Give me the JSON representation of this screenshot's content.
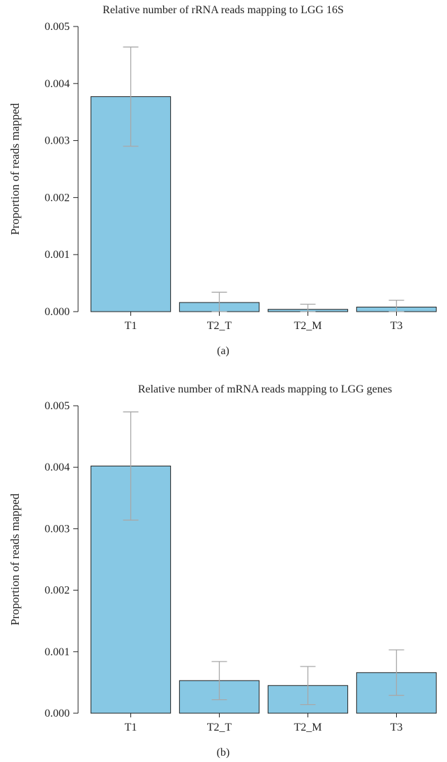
{
  "chart_data": [
    {
      "type": "bar",
      "title": "Relative number of rRNA reads mapping to LGG 16S",
      "ylabel": "Proportion of reads mapped",
      "xlabel": "",
      "panel_label": "(a)",
      "categories": [
        "T1",
        "T2_T",
        "T2_M",
        "T3"
      ],
      "values": [
        0.00377,
        0.00016,
        4e-05,
        8e-05
      ],
      "error": [
        0.00087,
        0.00018,
        9e-05,
        0.00012
      ],
      "ylim": [
        0,
        0.005
      ],
      "yticks": [
        "0.000",
        "0.001",
        "0.002",
        "0.003",
        "0.004",
        "0.005"
      ],
      "bar_color": "#87c8e4",
      "error_color": "#a8a8a8",
      "grid": false
    },
    {
      "type": "bar",
      "title": "Relative number of mRNA reads mapping to LGG genes",
      "ylabel": "Proportion of reads mapped",
      "xlabel": "",
      "panel_label": "(b)",
      "categories": [
        "T1",
        "T2_T",
        "T2_M",
        "T3"
      ],
      "values": [
        0.00402,
        0.00053,
        0.00045,
        0.00066
      ],
      "error": [
        0.00088,
        0.00031,
        0.00031,
        0.00037
      ],
      "ylim": [
        0,
        0.005
      ],
      "yticks": [
        "0.000",
        "0.001",
        "0.002",
        "0.003",
        "0.004",
        "0.005"
      ],
      "bar_color": "#87c8e4",
      "error_color": "#a8a8a8",
      "grid": false
    }
  ]
}
